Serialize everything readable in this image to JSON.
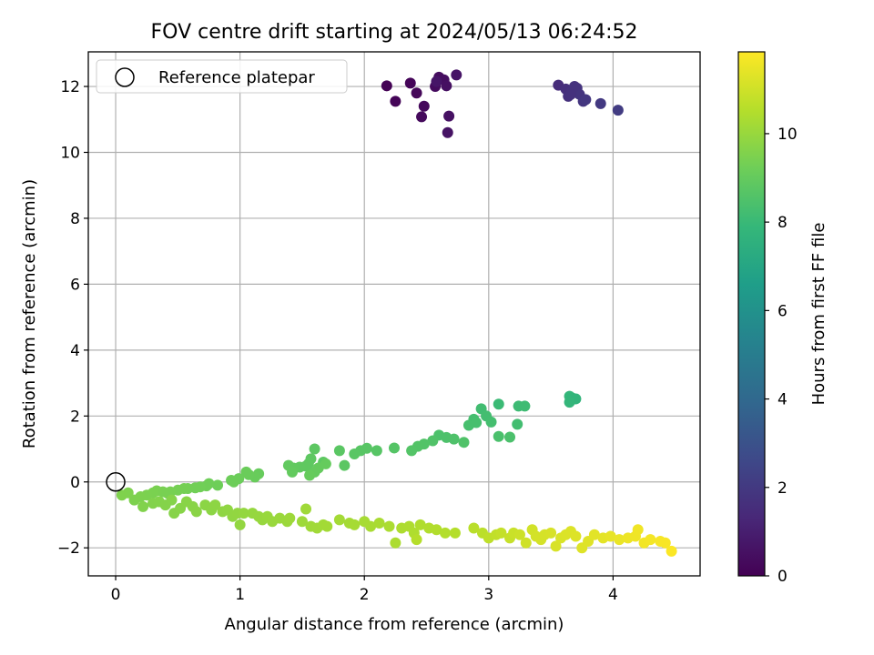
{
  "chart_data": {
    "type": "scatter",
    "title": "FOV centre drift starting at 2024/05/13 06:24:52",
    "xlabel": "Angular distance from reference (arcmin)",
    "ylabel": "Rotation from reference (arcmin)",
    "xlim": [
      -0.22,
      4.7
    ],
    "ylim": [
      -2.85,
      13.05
    ],
    "xticks": [
      0,
      1,
      2,
      3,
      4
    ],
    "yticks": [
      -2,
      0,
      2,
      4,
      6,
      8,
      10,
      12
    ],
    "grid": true,
    "legend": {
      "placement": "top-left",
      "entries": [
        "Reference platepar"
      ]
    },
    "reference_point": {
      "x": 0.0,
      "y": 0.0
    },
    "colorbar": {
      "label": "Hours from first FF file",
      "range": [
        0,
        11.85
      ],
      "ticks": [
        0,
        2,
        4,
        6,
        8,
        10
      ],
      "colormap": [
        "#440154",
        "#482878",
        "#3e4989",
        "#31688e",
        "#26828e",
        "#1f9e89",
        "#35b779",
        "#6ece58",
        "#b5de2b",
        "#fde725"
      ]
    },
    "series": [
      {
        "points": [
          [
            2.18,
            12.02,
            0.05
          ],
          [
            2.25,
            11.55,
            0.1
          ],
          [
            2.37,
            12.1,
            0.15
          ],
          [
            2.42,
            11.8,
            0.2
          ],
          [
            2.48,
            11.4,
            0.25
          ],
          [
            2.46,
            11.08,
            0.3
          ],
          [
            2.57,
            12.0,
            0.35
          ],
          [
            2.6,
            12.28,
            0.4
          ],
          [
            2.64,
            12.2,
            0.45
          ],
          [
            2.66,
            12.02,
            0.5
          ],
          [
            2.68,
            11.1,
            0.55
          ],
          [
            2.67,
            10.6,
            0.6
          ],
          [
            2.74,
            12.35,
            0.65
          ],
          [
            2.58,
            12.15,
            0.68
          ],
          [
            3.56,
            12.04,
            1.5
          ],
          [
            3.62,
            11.92,
            1.6
          ],
          [
            3.64,
            11.7,
            1.65
          ],
          [
            3.67,
            11.85,
            1.7
          ],
          [
            3.71,
            11.95,
            1.75
          ],
          [
            3.73,
            11.76,
            1.8
          ],
          [
            3.76,
            11.55,
            1.85
          ],
          [
            3.78,
            11.6,
            1.9
          ],
          [
            3.9,
            11.48,
            2.0
          ],
          [
            4.04,
            11.28,
            2.1
          ],
          [
            3.69,
            12.0,
            1.72
          ],
          [
            3.66,
            11.76,
            1.68
          ],
          [
            3.65,
            2.6,
            7.85
          ],
          [
            3.67,
            2.55,
            7.8
          ],
          [
            3.7,
            2.52,
            7.75
          ],
          [
            3.65,
            2.42,
            7.82
          ],
          [
            3.08,
            2.36,
            8.05
          ],
          [
            3.24,
            2.3,
            8.1
          ],
          [
            3.29,
            2.3,
            8.12
          ],
          [
            2.94,
            2.22,
            8.2
          ],
          [
            2.98,
            2.0,
            8.25
          ],
          [
            2.88,
            1.9,
            8.3
          ],
          [
            2.84,
            1.72,
            8.35
          ],
          [
            2.9,
            1.8,
            8.33
          ],
          [
            3.02,
            1.82,
            8.28
          ],
          [
            3.23,
            1.75,
            8.22
          ],
          [
            3.08,
            1.38,
            8.4
          ],
          [
            3.17,
            1.36,
            8.42
          ],
          [
            2.6,
            1.42,
            8.45
          ],
          [
            2.66,
            1.35,
            8.47
          ],
          [
            2.72,
            1.3,
            8.5
          ],
          [
            2.8,
            1.2,
            8.52
          ],
          [
            2.55,
            1.25,
            8.55
          ],
          [
            2.48,
            1.15,
            8.58
          ],
          [
            2.43,
            1.08,
            8.6
          ],
          [
            2.38,
            0.95,
            8.62
          ],
          [
            2.24,
            1.03,
            8.65
          ],
          [
            2.1,
            0.95,
            8.68
          ],
          [
            2.02,
            1.02,
            8.7
          ],
          [
            1.97,
            0.95,
            8.72
          ],
          [
            1.92,
            0.85,
            8.74
          ],
          [
            1.8,
            0.95,
            8.76
          ],
          [
            1.84,
            0.5,
            8.78
          ],
          [
            1.67,
            0.6,
            8.8
          ],
          [
            1.6,
            1.0,
            8.82
          ],
          [
            1.57,
            0.7,
            8.84
          ],
          [
            1.55,
            0.55,
            8.86
          ],
          [
            1.53,
            0.48,
            8.88
          ],
          [
            1.48,
            0.45,
            8.9
          ],
          [
            1.43,
            0.42,
            8.92
          ],
          [
            1.39,
            0.5,
            8.94
          ],
          [
            1.42,
            0.3,
            8.96
          ],
          [
            1.6,
            0.3,
            8.98
          ],
          [
            1.63,
            0.42,
            9.0
          ],
          [
            1.69,
            0.55,
            9.02
          ],
          [
            1.56,
            0.2,
            9.04
          ],
          [
            1.15,
            0.25,
            9.06
          ],
          [
            1.12,
            0.15,
            9.08
          ],
          [
            1.07,
            0.22,
            9.1
          ],
          [
            1.05,
            0.3,
            9.12
          ],
          [
            0.99,
            0.1,
            9.14
          ],
          [
            0.95,
            0.0,
            9.16
          ],
          [
            0.93,
            0.05,
            9.18
          ],
          [
            0.82,
            -0.1,
            9.2
          ],
          [
            0.75,
            -0.05,
            9.22
          ],
          [
            0.73,
            -0.12,
            9.24
          ],
          [
            0.68,
            -0.15,
            9.26
          ],
          [
            0.64,
            -0.18,
            9.28
          ],
          [
            0.58,
            -0.2,
            9.3
          ],
          [
            0.55,
            -0.2,
            9.32
          ],
          [
            0.5,
            -0.25,
            9.34
          ],
          [
            0.44,
            -0.3,
            9.36
          ],
          [
            0.42,
            -0.35,
            9.38
          ],
          [
            0.38,
            -0.3,
            9.4
          ],
          [
            0.33,
            -0.27,
            9.42
          ],
          [
            0.3,
            -0.33,
            9.44
          ],
          [
            0.25,
            -0.4,
            9.46
          ],
          [
            0.2,
            -0.45,
            9.48
          ],
          [
            0.15,
            -0.55,
            9.5
          ],
          [
            0.1,
            -0.33,
            9.52
          ],
          [
            0.05,
            -0.4,
            9.54
          ],
          [
            0.22,
            -0.75,
            9.56
          ],
          [
            0.3,
            -0.65,
            9.58
          ],
          [
            0.35,
            -0.6,
            9.6
          ],
          [
            0.4,
            -0.7,
            9.62
          ],
          [
            0.45,
            -0.55,
            9.64
          ],
          [
            0.47,
            -0.95,
            9.66
          ],
          [
            0.52,
            -0.8,
            9.68
          ],
          [
            0.57,
            -0.6,
            9.7
          ],
          [
            0.62,
            -0.75,
            9.72
          ],
          [
            0.65,
            -0.9,
            9.74
          ],
          [
            0.72,
            -0.7,
            9.76
          ],
          [
            0.77,
            -0.85,
            9.78
          ],
          [
            0.8,
            -0.7,
            9.8
          ],
          [
            0.86,
            -0.9,
            9.82
          ],
          [
            0.9,
            -0.85,
            9.84
          ],
          [
            0.94,
            -1.05,
            9.86
          ],
          [
            0.98,
            -0.95,
            9.88
          ],
          [
            1.0,
            -1.3,
            9.9
          ],
          [
            1.03,
            -0.95,
            9.92
          ],
          [
            1.1,
            -0.95,
            9.94
          ],
          [
            1.15,
            -1.05,
            9.96
          ],
          [
            1.18,
            -1.15,
            9.98
          ],
          [
            1.22,
            -1.05,
            10.0
          ],
          [
            1.26,
            -1.2,
            10.02
          ],
          [
            1.32,
            -1.1,
            10.04
          ],
          [
            1.38,
            -1.2,
            10.06
          ],
          [
            1.4,
            -1.1,
            10.08
          ],
          [
            1.5,
            -1.2,
            10.1
          ],
          [
            1.53,
            -0.82,
            10.12
          ],
          [
            1.57,
            -1.35,
            10.14
          ],
          [
            1.62,
            -1.4,
            10.16
          ],
          [
            1.67,
            -1.3,
            10.18
          ],
          [
            1.7,
            -1.35,
            10.2
          ],
          [
            1.8,
            -1.15,
            10.22
          ],
          [
            1.88,
            -1.25,
            10.24
          ],
          [
            1.92,
            -1.3,
            10.26
          ],
          [
            2.0,
            -1.2,
            10.28
          ],
          [
            2.05,
            -1.35,
            10.3
          ],
          [
            2.12,
            -1.25,
            10.32
          ],
          [
            2.2,
            -1.35,
            10.34
          ],
          [
            2.25,
            -1.85,
            10.36
          ],
          [
            2.3,
            -1.4,
            10.38
          ],
          [
            2.36,
            -1.35,
            10.4
          ],
          [
            2.4,
            -1.55,
            10.42
          ],
          [
            2.45,
            -1.3,
            10.44
          ],
          [
            2.52,
            -1.4,
            10.46
          ],
          [
            2.58,
            -1.45,
            10.48
          ],
          [
            2.65,
            -1.55,
            10.5
          ],
          [
            2.73,
            -1.55,
            10.52
          ],
          [
            2.42,
            -1.75,
            10.54
          ],
          [
            2.88,
            -1.4,
            10.6
          ],
          [
            2.95,
            -1.55,
            10.65
          ],
          [
            3.0,
            -1.7,
            10.7
          ],
          [
            3.06,
            -1.6,
            10.75
          ],
          [
            3.1,
            -1.55,
            10.8
          ],
          [
            3.17,
            -1.7,
            10.85
          ],
          [
            3.2,
            -1.55,
            10.9
          ],
          [
            3.25,
            -1.6,
            10.95
          ],
          [
            3.3,
            -1.85,
            11.0
          ],
          [
            3.35,
            -1.45,
            11.05
          ],
          [
            3.38,
            -1.65,
            11.08
          ],
          [
            3.42,
            -1.75,
            11.1
          ],
          [
            3.45,
            -1.6,
            11.12
          ],
          [
            3.5,
            -1.55,
            11.15
          ],
          [
            3.54,
            -1.95,
            11.18
          ],
          [
            3.58,
            -1.7,
            11.2
          ],
          [
            3.62,
            -1.6,
            11.22
          ],
          [
            3.66,
            -1.5,
            11.24
          ],
          [
            3.7,
            -1.65,
            11.26
          ],
          [
            3.75,
            -2.0,
            11.28
          ],
          [
            3.8,
            -1.8,
            11.3
          ],
          [
            3.85,
            -1.6,
            11.35
          ],
          [
            3.92,
            -1.7,
            11.4
          ],
          [
            3.98,
            -1.65,
            11.45
          ],
          [
            4.05,
            -1.75,
            11.5
          ],
          [
            4.12,
            -1.7,
            11.55
          ],
          [
            4.18,
            -1.65,
            11.6
          ],
          [
            4.2,
            -1.45,
            11.62
          ],
          [
            4.25,
            -1.85,
            11.65
          ],
          [
            4.3,
            -1.75,
            11.68
          ],
          [
            4.38,
            -1.8,
            11.72
          ],
          [
            4.42,
            -1.85,
            11.76
          ],
          [
            4.47,
            -2.1,
            11.82
          ]
        ]
      }
    ]
  }
}
